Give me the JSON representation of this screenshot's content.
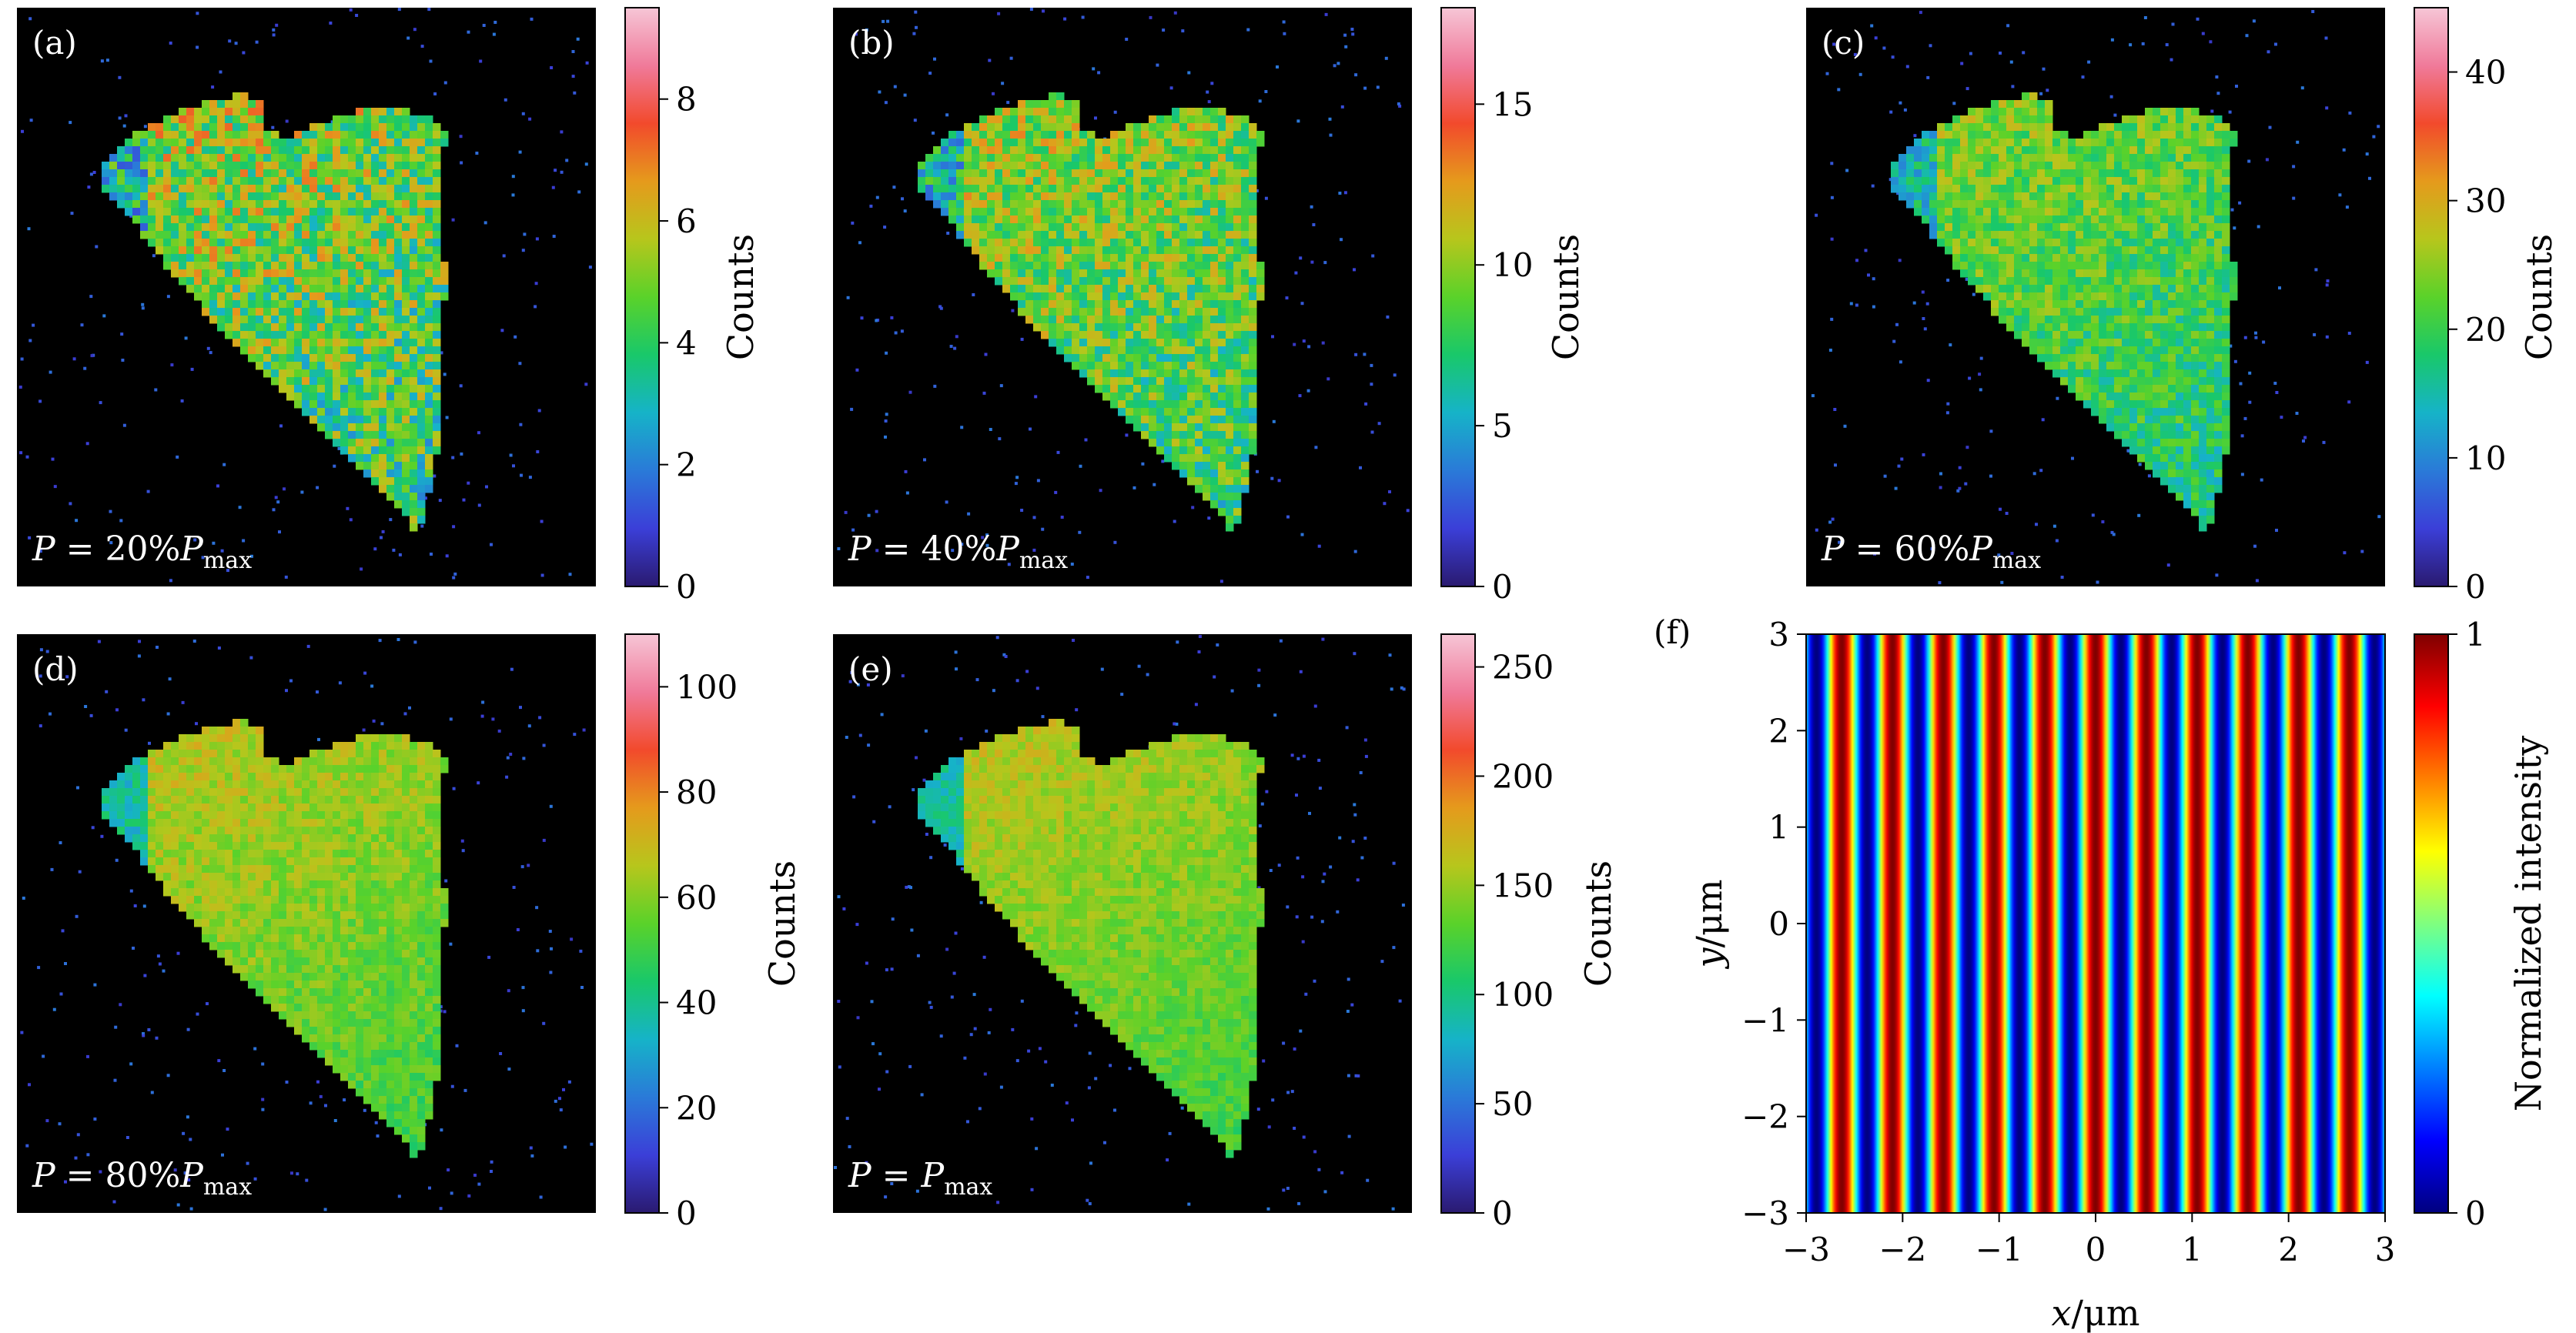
{
  "figure": {
    "colors": {
      "image_background": "#000000",
      "counts_colormap": [
        "#2a1a70",
        "#3b3fd8",
        "#2a7ad8",
        "#16b3c8",
        "#19c86a",
        "#5ad22a",
        "#b7c61c",
        "#e59a1c",
        "#f24a2c",
        "#f07a9a",
        "#f6c6d6"
      ],
      "jet_colormap": [
        "#00007f",
        "#0000ff",
        "#007fff",
        "#00ffff",
        "#7fff7f",
        "#ffff00",
        "#ff7f00",
        "#ff0000",
        "#7f0000"
      ]
    }
  },
  "chart_data": [
    {
      "type": "heatmap",
      "panel_label": "(a)",
      "annotation": {
        "prefix": "P",
        "mid": " = 20%",
        "base": "P",
        "sub": "max"
      },
      "colorbar": {
        "label": "Counts",
        "range": [
          0,
          9.5
        ],
        "ticks": [
          0,
          2,
          4,
          6,
          8
        ],
        "tick_labels": [
          "0",
          "2",
          "4",
          "6",
          "8"
        ]
      },
      "mean_level_fraction": 0.5,
      "noise": 0.55
    },
    {
      "type": "heatmap",
      "panel_label": "(b)",
      "annotation": {
        "prefix": "P",
        "mid": " = 40%",
        "base": "P",
        "sub": "max"
      },
      "colorbar": {
        "label": "Counts",
        "range": [
          0,
          18
        ],
        "ticks": [
          0,
          5,
          10,
          15
        ],
        "tick_labels": [
          "0",
          "5",
          "10",
          "15"
        ]
      },
      "mean_level_fraction": 0.5,
      "noise": 0.45
    },
    {
      "type": "heatmap",
      "panel_label": "(c)",
      "annotation": {
        "prefix": "P",
        "mid": " = 60%",
        "base": "P",
        "sub": "max"
      },
      "colorbar": {
        "label": "Counts",
        "range": [
          0,
          45
        ],
        "ticks": [
          0,
          10,
          20,
          30,
          40
        ],
        "tick_labels": [
          "0",
          "10",
          "20",
          "30",
          "40"
        ]
      },
      "mean_level_fraction": 0.46,
      "noise": 0.3
    },
    {
      "type": "heatmap",
      "panel_label": "(d)",
      "annotation": {
        "prefix": "P",
        "mid": " = 80%",
        "base": "P",
        "sub": "max"
      },
      "colorbar": {
        "label": "Counts",
        "range": [
          0,
          110
        ],
        "ticks": [
          0,
          20,
          40,
          60,
          80,
          100
        ],
        "tick_labels": [
          "0",
          "20",
          "40",
          "60",
          "80",
          "100"
        ]
      },
      "mean_level_fraction": 0.55,
      "noise": 0.18
    },
    {
      "type": "heatmap",
      "panel_label": "(e)",
      "annotation": {
        "prefix": "P",
        "mid": " = ",
        "base": "P",
        "sub": "max"
      },
      "colorbar": {
        "label": "Counts",
        "range": [
          0,
          265
        ],
        "ticks": [
          0,
          50,
          100,
          150,
          200,
          250
        ],
        "tick_labels": [
          "0",
          "50",
          "100",
          "150",
          "200",
          "250"
        ]
      },
      "mean_level_fraction": 0.55,
      "noise": 0.15
    },
    {
      "type": "heatmap",
      "panel_label": "(f)",
      "xlabel": {
        "var": "x",
        "unit": "/μm"
      },
      "ylabel": {
        "var": "y",
        "unit": "/μm"
      },
      "xlim": [
        -3,
        3
      ],
      "ylim": [
        -3,
        3
      ],
      "xticks": [
        -3,
        -2,
        -1,
        0,
        1,
        2,
        3
      ],
      "xtick_labels": [
        "−3",
        "−2",
        "−1",
        "0",
        "1",
        "2",
        "3"
      ],
      "yticks": [
        -3,
        -2,
        -1,
        0,
        1,
        2,
        3
      ],
      "ytick_labels": [
        "−3",
        "−2",
        "−1",
        "0",
        "1",
        "2",
        "3"
      ],
      "fringe_period_um": 0.526,
      "intensity_function": "cos^2(pi*x/period)",
      "colorbar": {
        "label": "Normalized intensity",
        "range": [
          0,
          1
        ],
        "ticks": [
          0,
          1
        ],
        "tick_labels": [
          "0",
          "1"
        ]
      }
    }
  ]
}
